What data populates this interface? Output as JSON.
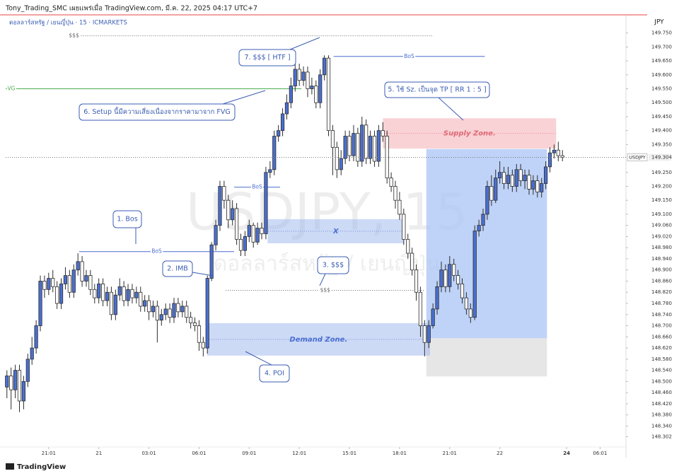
{
  "header": {
    "author_line": "Tony_Trading_SMC เผยแพร่เมื่อ TradingView.com, มี.ค. 22, 2025 04:17 UTC+7",
    "symbol_line": "ดอลลาร์สหรัฐ / เยนญี่ปุ่น · 15 · ICMARKETS",
    "currency": "JPY",
    "watermark_symbol": "USDJPY, 15",
    "watermark_name": "ดอลลาร์สหรัฐ / เยนญี่ปุ่น",
    "price_tag": "USDJPY"
  },
  "footer": {
    "brand": "TradingView"
  },
  "chart_data": {
    "type": "candlestick",
    "up_color": "#4a6fd0",
    "down_color": "#ffffff",
    "wick_color": "#2c2c2c",
    "grid": false,
    "xlim": [
      -10.3,
      138.2
    ],
    "ylim": [
      148.27,
      149.8
    ],
    "xticks": [
      {
        "value": 0,
        "label": "21:01"
      },
      {
        "value": 12,
        "label": "21"
      },
      {
        "value": 24,
        "label": "03:01"
      },
      {
        "value": 36,
        "label": "06:01"
      },
      {
        "value": 48,
        "label": "09:01"
      },
      {
        "value": 60,
        "label": "12:01"
      },
      {
        "value": 72,
        "label": "15:01"
      },
      {
        "value": 84,
        "label": "18:01"
      },
      {
        "value": 96,
        "label": "21:01"
      },
      {
        "value": 108,
        "label": "22"
      },
      {
        "value": 124,
        "label": "24"
      },
      {
        "value": 132,
        "label": "06:01"
      }
    ],
    "yticks": [
      {
        "value": 149.75,
        "label": "149.750"
      },
      {
        "value": 149.7,
        "label": "149.700"
      },
      {
        "value": 149.65,
        "label": "149.650"
      },
      {
        "value": 149.6,
        "label": "149.600"
      },
      {
        "value": 149.55,
        "label": "149.550"
      },
      {
        "value": 149.5,
        "label": "149.500"
      },
      {
        "value": 149.45,
        "label": "149.450"
      },
      {
        "value": 149.4,
        "label": "149.400"
      },
      {
        "value": 149.35,
        "label": "149.350"
      },
      {
        "value": 149.25,
        "label": "149.250"
      },
      {
        "value": 149.2,
        "label": "149.200"
      },
      {
        "value": 149.15,
        "label": "149.150"
      },
      {
        "value": 149.1,
        "label": "149.100"
      },
      {
        "value": 149.06,
        "label": "149.060"
      },
      {
        "value": 149.02,
        "label": "149.020"
      },
      {
        "value": 148.98,
        "label": "148.980"
      },
      {
        "value": 148.94,
        "label": "148.940"
      },
      {
        "value": 148.9,
        "label": "148.900"
      },
      {
        "value": 148.86,
        "label": "148.860"
      },
      {
        "value": 148.82,
        "label": "148.820"
      },
      {
        "value": 148.78,
        "label": "148.780"
      },
      {
        "value": 148.74,
        "label": "148.740"
      },
      {
        "value": 148.7,
        "label": "148.700"
      },
      {
        "value": 148.66,
        "label": "148.660"
      },
      {
        "value": 148.62,
        "label": "148.620"
      },
      {
        "value": 148.58,
        "label": "148.580"
      },
      {
        "value": 148.54,
        "label": "148.540"
      },
      {
        "value": 148.5,
        "label": "148.500"
      },
      {
        "value": 148.46,
        "label": "148.460"
      },
      {
        "value": 148.42,
        "label": "148.420"
      },
      {
        "value": 148.38,
        "label": "148.380"
      },
      {
        "value": 148.34,
        "label": "148.340"
      },
      148.302
    ],
    "x": [
      -10,
      -9,
      -8,
      -7,
      -6,
      -5,
      -4,
      -3,
      -2,
      -1,
      0,
      1,
      2,
      3,
      4,
      5,
      6,
      7,
      8,
      9,
      10,
      11,
      12,
      13,
      14,
      15,
      16,
      17,
      18,
      19,
      20,
      21,
      22,
      23,
      24,
      25,
      26,
      27,
      28,
      29,
      30,
      31,
      32,
      33,
      34,
      35,
      36,
      37,
      38,
      39,
      40,
      41,
      42,
      43,
      44,
      45,
      46,
      47,
      48,
      49,
      50,
      51,
      52,
      53,
      54,
      55,
      56,
      57,
      58,
      59,
      60,
      61,
      62,
      63,
      64,
      65,
      66,
      67,
      68,
      69,
      70,
      71,
      72,
      73,
      74,
      75,
      76,
      77,
      78,
      79,
      80,
      81,
      82,
      83,
      84,
      85,
      86,
      87,
      88,
      89,
      90,
      91,
      92,
      93,
      94,
      95,
      96,
      97,
      98,
      99,
      100,
      101,
      102,
      103,
      104,
      105,
      106,
      107,
      108,
      109,
      110,
      111,
      112,
      113,
      114,
      115,
      116,
      117,
      118,
      119,
      120,
      121,
      122,
      123
    ],
    "open": [
      148.48,
      148.52,
      148.47,
      148.54,
      148.43,
      148.5,
      148.58,
      148.62,
      148.7,
      148.86,
      148.83,
      148.87,
      148.84,
      148.78,
      148.85,
      148.88,
      148.82,
      148.9,
      148.93,
      148.86,
      148.88,
      148.83,
      148.8,
      148.85,
      148.79,
      148.82,
      148.74,
      148.81,
      148.84,
      148.79,
      148.83,
      148.8,
      148.82,
      148.77,
      148.79,
      148.75,
      148.77,
      148.72,
      148.74,
      148.76,
      148.73,
      148.78,
      148.75,
      148.77,
      148.73,
      148.71,
      148.7,
      148.64,
      148.62,
      148.87,
      148.99,
      149.06,
      149.2,
      149.15,
      149.08,
      149.12,
      149.01,
      148.97,
      149.02,
      149.06,
      149.0,
      149.05,
      149.03,
      149.25,
      149.26,
      149.38,
      149.4,
      149.46,
      149.5,
      149.56,
      149.62,
      149.58,
      149.61,
      149.55,
      149.56,
      149.5,
      149.6,
      149.66,
      149.4,
      149.34,
      149.26,
      149.3,
      149.38,
      149.31,
      149.39,
      149.29,
      149.42,
      149.3,
      149.38,
      149.29,
      149.4,
      149.38,
      149.23,
      149.2,
      149.15,
      149.1,
      149.01,
      148.96,
      148.9,
      148.82,
      148.7,
      148.64,
      148.7,
      148.76,
      148.84,
      148.9,
      148.84,
      148.92,
      148.88,
      148.85,
      148.8,
      148.76,
      148.73,
      149.04,
      149.06,
      149.1,
      149.2,
      149.15,
      149.23,
      149.25,
      149.21,
      149.24,
      149.2,
      149.26,
      149.22,
      149.24,
      149.19,
      149.22,
      149.18,
      149.21,
      149.27,
      149.32,
      149.33,
      149.31
    ],
    "high": [
      148.54,
      148.55,
      148.56,
      148.56,
      148.52,
      148.6,
      148.66,
      148.72,
      148.88,
      148.88,
      148.89,
      148.9,
      148.86,
      148.87,
      148.91,
      148.9,
      148.92,
      148.96,
      148.95,
      148.9,
      148.9,
      148.85,
      148.87,
      148.87,
      148.84,
      148.84,
      148.83,
      148.87,
      148.86,
      148.85,
      148.85,
      148.84,
      148.84,
      148.81,
      148.81,
      148.79,
      148.79,
      148.76,
      148.78,
      148.78,
      148.8,
      148.8,
      148.79,
      148.79,
      148.75,
      148.73,
      148.72,
      148.66,
      148.88,
      149.0,
      149.08,
      149.22,
      149.22,
      149.17,
      149.15,
      149.14,
      149.03,
      149.04,
      149.08,
      149.07,
      149.07,
      149.07,
      149.27,
      149.29,
      149.4,
      149.42,
      149.48,
      149.53,
      149.59,
      149.65,
      149.64,
      149.63,
      149.63,
      149.59,
      149.58,
      149.62,
      149.67,
      149.67,
      149.42,
      149.36,
      149.33,
      149.4,
      149.4,
      149.42,
      149.41,
      149.45,
      149.44,
      149.4,
      149.4,
      149.42,
      149.43,
      149.4,
      149.25,
      149.22,
      149.18,
      149.12,
      149.03,
      148.98,
      148.92,
      148.84,
      148.72,
      148.72,
      148.78,
      148.86,
      148.93,
      148.92,
      148.95,
      148.94,
      148.9,
      148.87,
      148.82,
      148.78,
      149.06,
      149.08,
      149.12,
      149.22,
      149.24,
      149.26,
      149.29,
      149.27,
      149.27,
      149.26,
      149.28,
      149.28,
      149.26,
      149.26,
      149.24,
      149.24,
      149.23,
      149.29,
      149.34,
      149.35,
      149.36,
      149.33
    ],
    "low": [
      148.44,
      148.4,
      148.44,
      148.39,
      148.4,
      148.48,
      148.56,
      148.6,
      148.68,
      148.8,
      148.81,
      148.82,
      148.76,
      148.76,
      148.83,
      148.8,
      148.8,
      148.88,
      148.84,
      148.84,
      148.81,
      148.78,
      148.78,
      148.77,
      148.77,
      148.72,
      148.72,
      148.79,
      148.77,
      148.77,
      148.78,
      148.78,
      148.75,
      148.75,
      148.72,
      148.73,
      148.64,
      148.7,
      148.72,
      148.71,
      148.71,
      148.73,
      148.73,
      148.71,
      148.69,
      148.68,
      148.61,
      148.59,
      148.6,
      148.86,
      148.97,
      149.04,
      149.12,
      149.05,
      149.06,
      148.99,
      148.95,
      148.95,
      149.0,
      148.98,
      148.99,
      149.01,
      149.01,
      149.23,
      149.24,
      149.36,
      149.38,
      149.44,
      149.48,
      149.54,
      149.56,
      149.56,
      149.52,
      149.53,
      149.48,
      149.48,
      149.58,
      149.38,
      149.24,
      149.23,
      149.24,
      149.28,
      149.29,
      149.29,
      149.27,
      149.27,
      149.28,
      149.28,
      149.27,
      149.27,
      149.36,
      149.21,
      149.18,
      149.12,
      149.08,
      148.99,
      148.94,
      148.88,
      148.79,
      148.66,
      148.59,
      148.62,
      148.69,
      148.74,
      148.82,
      148.82,
      148.82,
      148.86,
      148.83,
      148.78,
      148.74,
      148.71,
      148.72,
      149.02,
      149.04,
      149.08,
      149.13,
      149.14,
      149.21,
      149.19,
      149.19,
      149.18,
      149.18,
      149.2,
      149.19,
      149.17,
      149.17,
      149.16,
      149.16,
      149.19,
      149.25,
      149.3,
      149.29,
      149.29
    ],
    "close": [
      148.52,
      148.47,
      148.54,
      148.43,
      148.5,
      148.58,
      148.62,
      148.7,
      148.86,
      148.83,
      148.87,
      148.84,
      148.78,
      148.85,
      148.88,
      148.82,
      148.9,
      148.93,
      148.86,
      148.88,
      148.83,
      148.8,
      148.85,
      148.79,
      148.82,
      148.74,
      148.81,
      148.84,
      148.79,
      148.83,
      148.8,
      148.82,
      148.77,
      148.79,
      148.75,
      148.77,
      148.72,
      148.74,
      148.76,
      148.73,
      148.78,
      148.75,
      148.77,
      148.73,
      148.71,
      148.7,
      148.64,
      148.62,
      148.87,
      148.99,
      149.06,
      149.2,
      149.15,
      149.08,
      149.12,
      149.01,
      148.97,
      149.02,
      149.06,
      149.0,
      149.05,
      149.03,
      149.25,
      149.26,
      149.38,
      149.4,
      149.46,
      149.5,
      149.56,
      149.62,
      149.58,
      149.61,
      149.55,
      149.56,
      149.5,
      149.6,
      149.66,
      149.4,
      149.34,
      149.26,
      149.3,
      149.38,
      149.31,
      149.39,
      149.29,
      149.42,
      149.3,
      149.38,
      149.29,
      149.4,
      149.38,
      149.23,
      149.2,
      149.15,
      149.1,
      149.01,
      148.96,
      148.9,
      148.82,
      148.7,
      148.64,
      148.7,
      148.76,
      148.84,
      148.9,
      148.84,
      148.92,
      148.88,
      148.85,
      148.8,
      148.76,
      148.73,
      149.04,
      149.06,
      149.1,
      149.2,
      149.15,
      149.23,
      149.25,
      149.21,
      149.24,
      149.2,
      149.26,
      149.22,
      149.24,
      149.19,
      149.22,
      149.18,
      149.21,
      149.27,
      149.32,
      149.33,
      149.31,
      149.304
    ],
    "position": {
      "x": [
        90.4,
        119.3
      ],
      "entry": 148.655,
      "target": 149.334,
      "stop": 148.518,
      "target_color": "#a9c4f5",
      "stop_color": "#dcdcdc"
    },
    "zones": [
      {
        "label": "Supply Zone.",
        "x": [
          80.1,
          121.4
        ],
        "y": [
          149.337,
          149.443
        ],
        "color": "#f4a6ad",
        "label_color": "#e06b78"
      },
      {
        "label": "X",
        "x": [
          52.5,
          85
        ],
        "y": [
          148.997,
          149.081
        ],
        "color": "#9db6ef",
        "label_color": "#4a6fd0"
      },
      {
        "label": "Demand Zone.",
        "x": [
          38,
          91.2
        ],
        "y": [
          148.594,
          148.708
        ],
        "color": "#9db6ef",
        "label_color": "#4a6fd0"
      }
    ],
    "lines": [
      {
        "label": "BoS",
        "y": 148.966,
        "x": [
          7.3,
          44.4
        ],
        "color": "#4a6fd0",
        "style": "solid",
        "label_pos": "middle"
      },
      {
        "label": "BoS",
        "y": 149.197,
        "x": [
          44.4,
          55.4
        ],
        "color": "#4a6fd0",
        "style": "solid",
        "label_pos": "middle"
      },
      {
        "label": "BoS",
        "y": 149.666,
        "x": [
          68.2,
          104.4
        ],
        "color": "#4a6fd0",
        "style": "solid",
        "label_pos": "middle"
      },
      {
        "label": "$$$",
        "y": 149.74,
        "x": [
          4.7,
          92.1
        ],
        "color": "#666666",
        "style": "dotted",
        "label_pos": "start"
      },
      {
        "label": "$$$",
        "y": 148.827,
        "x": [
          42.4,
          90
        ],
        "color": "#666666",
        "style": "dotted",
        "label_pos": "middle"
      },
      {
        "label": "VG",
        "y": 149.55,
        "x": [
          -10.3,
          60.5
        ],
        "color": "#4caf50",
        "style": "solid",
        "label_pos": "start"
      }
    ],
    "annotations": [
      "1. Bos",
      "2. IMB",
      "3. $$$",
      "4. POI",
      "5. ใช้ Sz. เป็นจุด TP [ RR 1 : 5 ]",
      "6. Setup นี้มีความเสี่ยงเนื่องจากราคามาจาก FVG",
      "7. $$$ [ HTF ]"
    ]
  }
}
